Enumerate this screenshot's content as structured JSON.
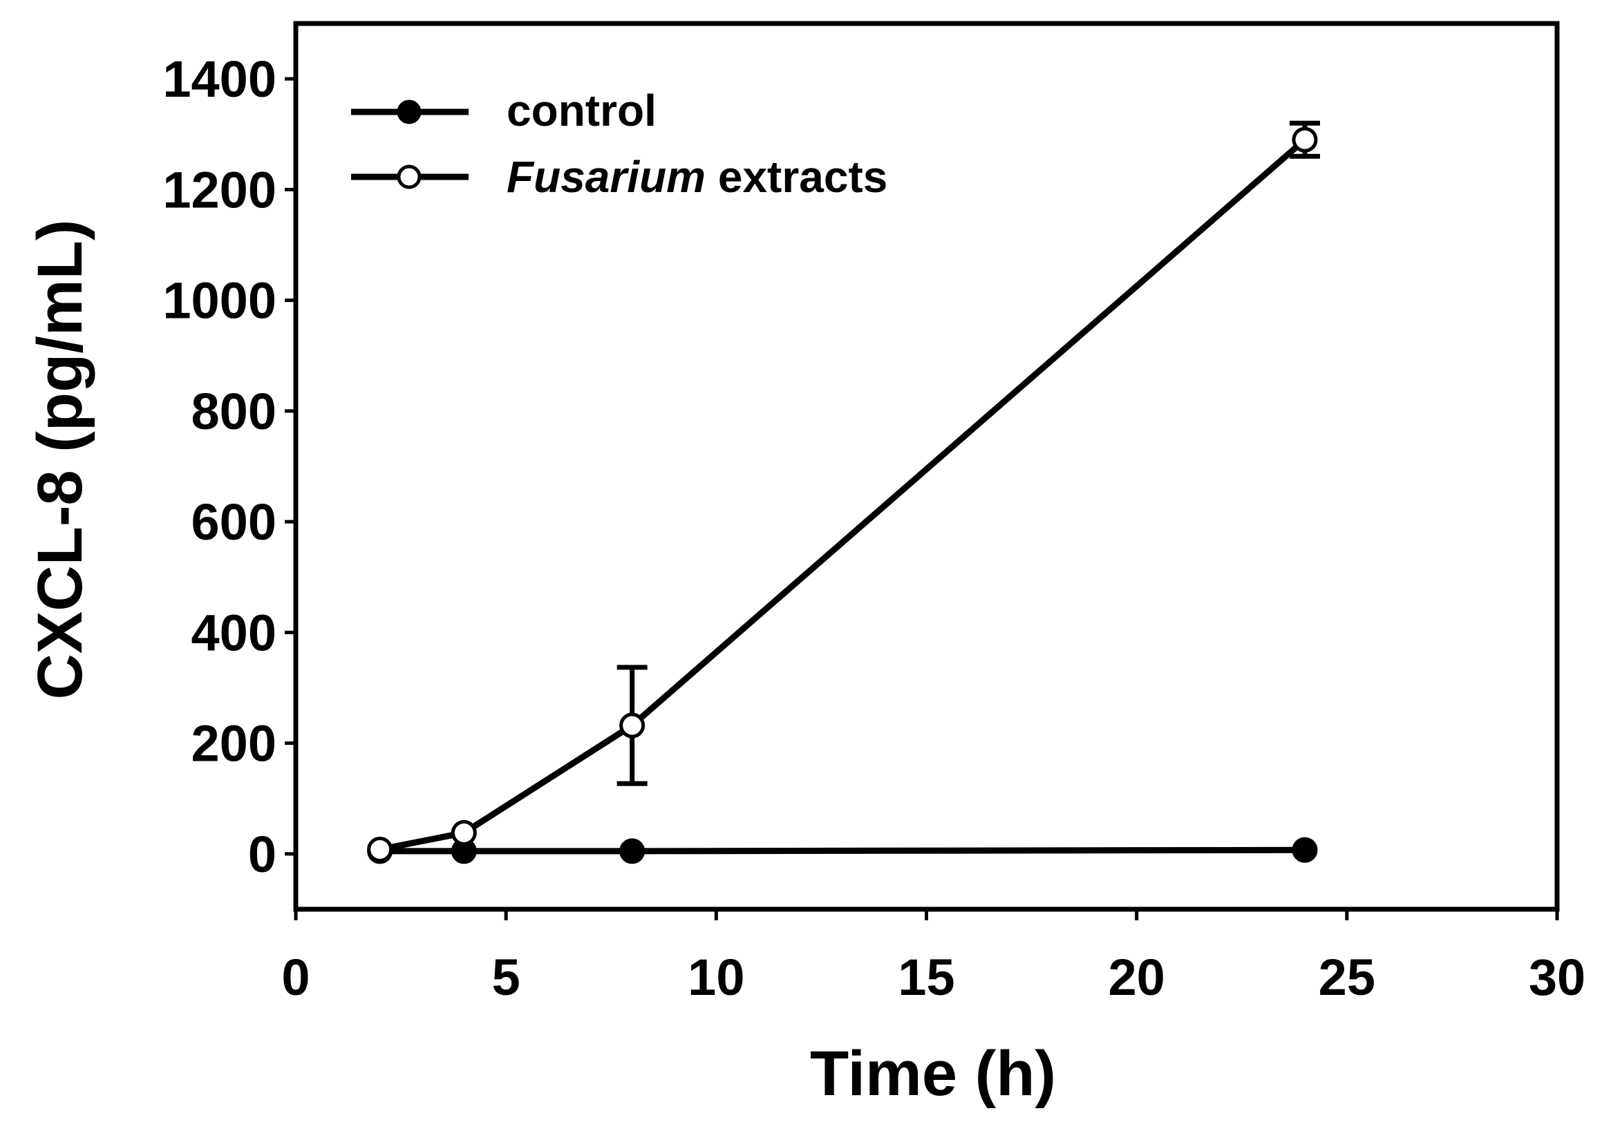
{
  "chart_data": {
    "type": "line",
    "title": "",
    "xlabel": "Time (h)",
    "ylabel": "CXCL-8 (pg/mL)",
    "xlim": [
      0,
      30
    ],
    "ylim": [
      -100,
      1500
    ],
    "xticks": [
      "0",
      "5",
      "10",
      "15",
      "20",
      "25",
      "30"
    ],
    "yticks": [
      "0",
      "200",
      "400",
      "600",
      "800",
      "1000",
      "1200",
      "1400"
    ],
    "grid": false,
    "legend_position": "top-left",
    "series": [
      {
        "name": "control",
        "marker": "filled-circle",
        "x": [
          2,
          4,
          8,
          24
        ],
        "y": [
          5,
          5,
          5,
          7
        ],
        "error": [
          0,
          0,
          0,
          0
        ]
      },
      {
        "name_italic": "Fusarium",
        "name_rest": " extracts",
        "marker": "open-circle",
        "x": [
          2,
          4,
          8,
          24
        ],
        "y": [
          8,
          38,
          232,
          1290
        ],
        "error": [
          0,
          0,
          105,
          30
        ]
      }
    ]
  }
}
